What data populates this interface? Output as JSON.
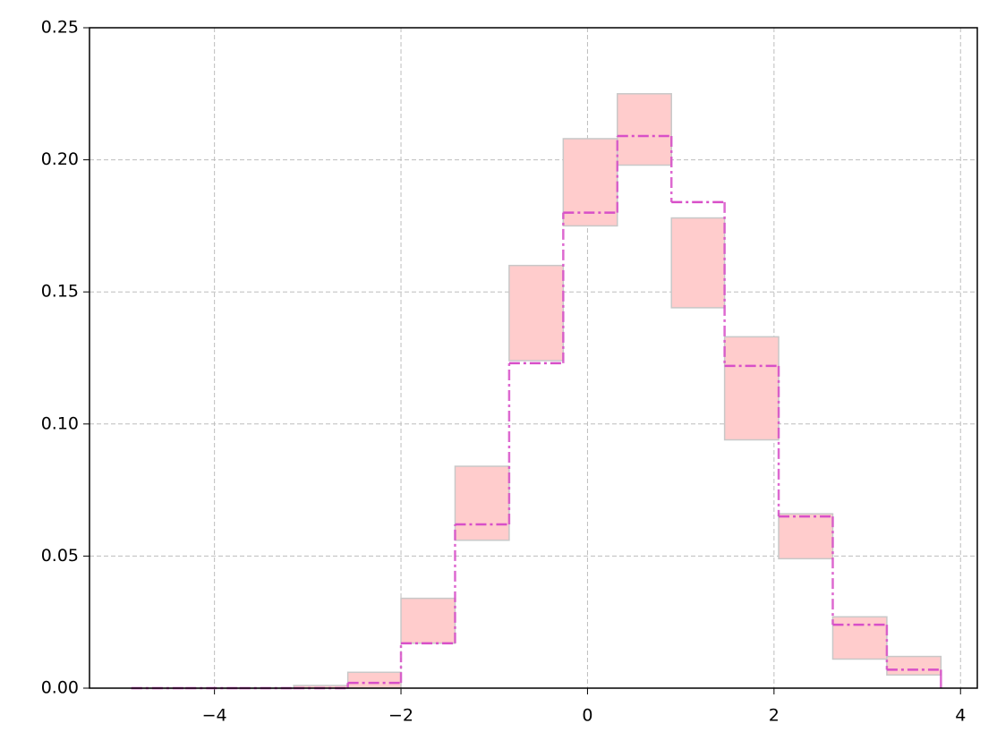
{
  "chart_data": {
    "type": "step-histogram",
    "bins": [
      -4.89,
      -4.31,
      -3.73,
      -3.15,
      -2.57,
      -2.0,
      -1.42,
      -0.84,
      -0.26,
      0.32,
      0.9,
      1.47,
      2.05,
      2.63,
      3.21,
      3.79
    ],
    "values": [
      0.0,
      0.0,
      0.0,
      0.0,
      0.002,
      0.017,
      0.062,
      0.123,
      0.18,
      0.209,
      0.184,
      0.122,
      0.065,
      0.024,
      0.007
    ],
    "lower": [
      0.0,
      0.0,
      0.0,
      0.0,
      0.0,
      0.017,
      0.056,
      0.124,
      0.175,
      0.198,
      0.144,
      0.094,
      0.049,
      0.011,
      0.005
    ],
    "upper": [
      0.0,
      0.0,
      0.0,
      0.001,
      0.006,
      0.034,
      0.084,
      0.16,
      0.208,
      0.225,
      0.178,
      0.133,
      0.066,
      0.027,
      0.012
    ],
    "color": "#d84fc8",
    "band_color": "#ffcccc",
    "xlim": [
      -5.34,
      4.18
    ],
    "ylim": [
      0,
      0.25
    ],
    "xticks": [
      {
        "value": -4,
        "label": "−4"
      },
      {
        "value": -2,
        "label": "−2"
      },
      0,
      2,
      4
    ],
    "yticks": [
      {
        "value": 0,
        "label": "0.00"
      },
      {
        "value": 0.05,
        "label": "0.05"
      },
      {
        "value": 0.1,
        "label": "0.10"
      },
      {
        "value": 0.15,
        "label": "0.15"
      },
      {
        "value": 0.2,
        "label": "0.20"
      },
      {
        "value": 0.25,
        "label": "0.25"
      }
    ],
    "grid": true
  }
}
